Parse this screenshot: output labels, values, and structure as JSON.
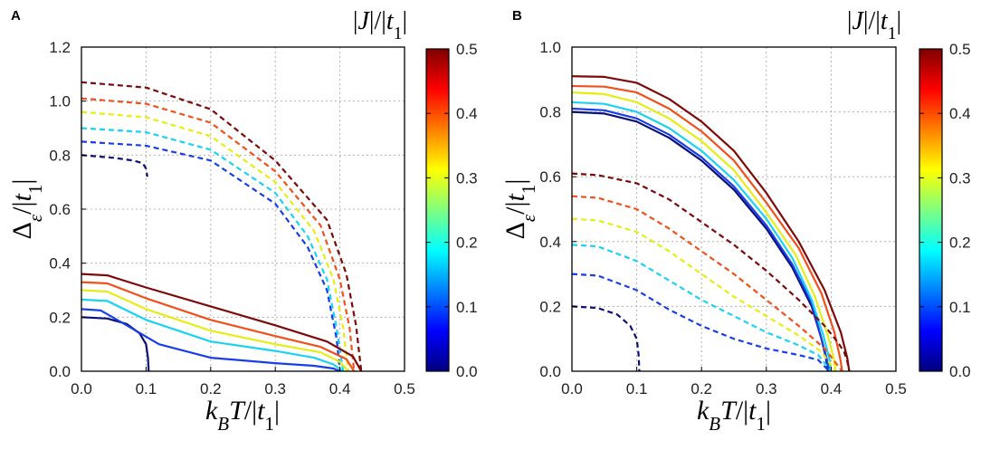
{
  "chart_data": [
    {
      "type": "line",
      "panel": "A",
      "xlabel": "k_B T / |t_1|",
      "ylabel": "Δ_ε / |t_1|",
      "xlim": [
        0.0,
        0.5
      ],
      "ylim": [
        0.0,
        1.2
      ],
      "xticks": [
        "0.0",
        "0.1",
        "0.2",
        "0.3",
        "0.4",
        "0.5"
      ],
      "yticks": [
        "0.0",
        "0.2",
        "0.4",
        "0.6",
        "0.8",
        "1.0",
        "1.2"
      ],
      "grid": true,
      "colorbar": {
        "title": "|J| / |t_1|",
        "min": 0.0,
        "max": 0.5,
        "ticks": [
          "0.0",
          "0.1",
          "0.2",
          "0.3",
          "0.4",
          "0.5"
        ],
        "colormap": "jet"
      },
      "series": [
        {
          "name": "|J|/|t1| = 0.0",
          "style": "dashed",
          "color": "#0b0f7a",
          "x": [
            0.0,
            0.05,
            0.08,
            0.095,
            0.1,
            0.102
          ],
          "y": [
            0.8,
            0.79,
            0.78,
            0.77,
            0.75,
            0.72
          ]
        },
        {
          "name": "|J|/|t1| = 0.0",
          "style": "solid",
          "color": "#0b0f7a",
          "x": [
            0.0,
            0.04,
            0.07,
            0.09,
            0.1,
            0.103,
            0.104
          ],
          "y": [
            0.2,
            0.195,
            0.175,
            0.14,
            0.1,
            0.05,
            0.0
          ]
        },
        {
          "name": "|J|/|t1| = 0.1 (dashed)",
          "style": "dashed",
          "color": "#1a3ee6",
          "x": [
            0.0,
            0.1,
            0.2,
            0.3,
            0.35,
            0.38,
            0.395,
            0.4
          ],
          "y": [
            0.85,
            0.835,
            0.78,
            0.62,
            0.46,
            0.3,
            0.12,
            0.0
          ]
        },
        {
          "name": "|J|/|t1| = 0.1 (solid)",
          "style": "solid",
          "color": "#1a3ee6",
          "x": [
            0.0,
            0.03,
            0.07,
            0.12,
            0.2,
            0.3,
            0.36,
            0.39,
            0.4
          ],
          "y": [
            0.23,
            0.225,
            0.17,
            0.1,
            0.05,
            0.03,
            0.02,
            0.01,
            0.0
          ]
        },
        {
          "name": "|J|/|t1| = 0.2 (dashed)",
          "style": "dashed",
          "color": "#19d3f0",
          "x": [
            0.0,
            0.1,
            0.2,
            0.3,
            0.35,
            0.38,
            0.395,
            0.405
          ],
          "y": [
            0.9,
            0.885,
            0.82,
            0.66,
            0.5,
            0.34,
            0.16,
            0.0
          ]
        },
        {
          "name": "|J|/|t1| = 0.2 (solid)",
          "style": "solid",
          "color": "#19d3f0",
          "x": [
            0.0,
            0.04,
            0.1,
            0.2,
            0.3,
            0.36,
            0.39,
            0.405
          ],
          "y": [
            0.265,
            0.26,
            0.19,
            0.11,
            0.075,
            0.05,
            0.025,
            0.0
          ]
        },
        {
          "name": "|J|/|t1| = 0.3 (dashed)",
          "style": "dashed",
          "color": "#e4ee14",
          "x": [
            0.0,
            0.1,
            0.2,
            0.3,
            0.36,
            0.39,
            0.405,
            0.413
          ],
          "y": [
            0.96,
            0.94,
            0.87,
            0.7,
            0.52,
            0.34,
            0.16,
            0.0
          ]
        },
        {
          "name": "|J|/|t1| = 0.3 (solid)",
          "style": "solid",
          "color": "#e4ee14",
          "x": [
            0.0,
            0.04,
            0.1,
            0.2,
            0.3,
            0.37,
            0.4,
            0.413
          ],
          "y": [
            0.3,
            0.295,
            0.23,
            0.15,
            0.1,
            0.07,
            0.035,
            0.0
          ]
        },
        {
          "name": "|J|/|t1| = 0.4 (dashed)",
          "style": "dashed",
          "color": "#f0501c",
          "x": [
            0.0,
            0.1,
            0.2,
            0.3,
            0.37,
            0.4,
            0.415,
            0.422
          ],
          "y": [
            1.01,
            0.99,
            0.92,
            0.74,
            0.54,
            0.34,
            0.16,
            0.0
          ]
        },
        {
          "name": "|J|/|t1| = 0.4 (solid)",
          "style": "solid",
          "color": "#f0501c",
          "x": [
            0.0,
            0.04,
            0.1,
            0.2,
            0.3,
            0.37,
            0.41,
            0.422
          ],
          "y": [
            0.33,
            0.325,
            0.27,
            0.19,
            0.13,
            0.09,
            0.045,
            0.0
          ]
        },
        {
          "name": "|J|/|t1| = 0.5 (dashed)",
          "style": "dashed",
          "color": "#7d0a0a",
          "x": [
            0.0,
            0.1,
            0.2,
            0.3,
            0.38,
            0.41,
            0.425,
            0.433
          ],
          "y": [
            1.07,
            1.05,
            0.97,
            0.78,
            0.56,
            0.36,
            0.17,
            0.0
          ]
        },
        {
          "name": "|J|/|t1| = 0.5 (solid)",
          "style": "solid",
          "color": "#7d0a0a",
          "x": [
            0.0,
            0.04,
            0.1,
            0.2,
            0.3,
            0.38,
            0.42,
            0.433
          ],
          "y": [
            0.36,
            0.355,
            0.31,
            0.24,
            0.17,
            0.11,
            0.055,
            0.0
          ]
        }
      ]
    },
    {
      "type": "line",
      "panel": "B",
      "xlabel": "k_B T / |t_1|",
      "ylabel": "Δ_ε / |t_1|",
      "xlim": [
        0.0,
        0.5
      ],
      "ylim": [
        0.0,
        1.0
      ],
      "xticks": [
        "0.0",
        "0.1",
        "0.2",
        "0.3",
        "0.4",
        "0.5"
      ],
      "yticks": [
        "0.0",
        "0.2",
        "0.4",
        "0.6",
        "0.8",
        "1.0"
      ],
      "grid": true,
      "colorbar": {
        "title": "|J| / |t_1|",
        "min": 0.0,
        "max": 0.5,
        "ticks": [
          "0.0",
          "0.1",
          "0.2",
          "0.3",
          "0.4",
          "0.5"
        ],
        "colormap": "jet"
      },
      "series": [
        {
          "name": "|J|/|t1| = 0.0 (solid)",
          "style": "solid",
          "color": "#0b0f7a",
          "x": [
            0.0,
            0.05,
            0.1,
            0.15,
            0.2,
            0.25,
            0.3,
            0.34,
            0.37,
            0.385,
            0.392,
            0.395
          ],
          "y": [
            0.8,
            0.795,
            0.77,
            0.72,
            0.65,
            0.56,
            0.44,
            0.32,
            0.2,
            0.1,
            0.04,
            0.0
          ]
        },
        {
          "name": "|J|/|t1| = 0.0 (dashed)",
          "style": "dashed",
          "color": "#0b0f7a",
          "x": [
            0.0,
            0.04,
            0.07,
            0.09,
            0.1,
            0.103,
            0.104
          ],
          "y": [
            0.2,
            0.195,
            0.175,
            0.14,
            0.1,
            0.05,
            0.0
          ]
        },
        {
          "name": "|J|/|t1| = 0.1 (solid)",
          "style": "solid",
          "color": "#1a3ee6",
          "x": [
            0.0,
            0.05,
            0.1,
            0.15,
            0.2,
            0.25,
            0.3,
            0.34,
            0.37,
            0.385,
            0.393,
            0.397
          ],
          "y": [
            0.81,
            0.805,
            0.78,
            0.73,
            0.66,
            0.57,
            0.45,
            0.33,
            0.21,
            0.1,
            0.04,
            0.0
          ]
        },
        {
          "name": "|J|/|t1| = 0.1 (dashed)",
          "style": "dashed",
          "color": "#1a3ee6",
          "x": [
            0.0,
            0.04,
            0.1,
            0.15,
            0.2,
            0.25,
            0.3,
            0.35,
            0.38,
            0.397
          ],
          "y": [
            0.3,
            0.295,
            0.25,
            0.19,
            0.14,
            0.1,
            0.07,
            0.05,
            0.035,
            0.0
          ]
        },
        {
          "name": "|J|/|t1| = 0.2 (solid)",
          "style": "solid",
          "color": "#19d3f0",
          "x": [
            0.0,
            0.05,
            0.1,
            0.15,
            0.2,
            0.25,
            0.3,
            0.34,
            0.37,
            0.388,
            0.397,
            0.4
          ],
          "y": [
            0.83,
            0.825,
            0.8,
            0.75,
            0.68,
            0.59,
            0.47,
            0.35,
            0.22,
            0.11,
            0.04,
            0.0
          ]
        },
        {
          "name": "|J|/|t1| = 0.2 (dashed)",
          "style": "dashed",
          "color": "#19d3f0",
          "x": [
            0.0,
            0.04,
            0.1,
            0.15,
            0.2,
            0.25,
            0.3,
            0.35,
            0.38,
            0.4
          ],
          "y": [
            0.39,
            0.385,
            0.34,
            0.28,
            0.22,
            0.17,
            0.12,
            0.08,
            0.05,
            0.0
          ]
        },
        {
          "name": "|J|/|t1| = 0.3 (solid)",
          "style": "solid",
          "color": "#e4ee14",
          "x": [
            0.0,
            0.05,
            0.1,
            0.15,
            0.2,
            0.25,
            0.3,
            0.345,
            0.375,
            0.395,
            0.404,
            0.407
          ],
          "y": [
            0.86,
            0.855,
            0.83,
            0.78,
            0.71,
            0.62,
            0.49,
            0.36,
            0.23,
            0.11,
            0.04,
            0.0
          ]
        },
        {
          "name": "|J|/|t1| = 0.3 (dashed)",
          "style": "dashed",
          "color": "#e4ee14",
          "x": [
            0.0,
            0.04,
            0.1,
            0.15,
            0.2,
            0.25,
            0.3,
            0.35,
            0.385,
            0.407
          ],
          "y": [
            0.47,
            0.465,
            0.43,
            0.37,
            0.3,
            0.23,
            0.17,
            0.11,
            0.06,
            0.0
          ]
        },
        {
          "name": "|J|/|t1| = 0.4 (solid)",
          "style": "solid",
          "color": "#f0501c",
          "x": [
            0.0,
            0.05,
            0.1,
            0.15,
            0.2,
            0.25,
            0.3,
            0.35,
            0.385,
            0.405,
            0.414,
            0.417
          ],
          "y": [
            0.88,
            0.878,
            0.86,
            0.81,
            0.74,
            0.65,
            0.52,
            0.38,
            0.24,
            0.12,
            0.04,
            0.0
          ]
        },
        {
          "name": "|J|/|t1| = 0.4 (dashed)",
          "style": "dashed",
          "color": "#f0501c",
          "x": [
            0.0,
            0.04,
            0.1,
            0.15,
            0.2,
            0.25,
            0.3,
            0.35,
            0.39,
            0.417
          ],
          "y": [
            0.54,
            0.535,
            0.5,
            0.44,
            0.37,
            0.3,
            0.22,
            0.14,
            0.07,
            0.0
          ]
        },
        {
          "name": "|J|/|t1| = 0.5 (solid)",
          "style": "solid",
          "color": "#7d0a0a",
          "x": [
            0.0,
            0.05,
            0.1,
            0.15,
            0.2,
            0.25,
            0.3,
            0.35,
            0.39,
            0.415,
            0.425,
            0.428
          ],
          "y": [
            0.91,
            0.908,
            0.89,
            0.84,
            0.77,
            0.68,
            0.55,
            0.4,
            0.25,
            0.12,
            0.04,
            0.0
          ]
        },
        {
          "name": "|J|/|t1| = 0.5 (dashed)",
          "style": "dashed",
          "color": "#7d0a0a",
          "x": [
            0.0,
            0.04,
            0.1,
            0.15,
            0.2,
            0.25,
            0.3,
            0.35,
            0.39,
            0.41,
            0.42,
            0.425,
            0.428
          ],
          "y": [
            0.61,
            0.605,
            0.58,
            0.53,
            0.46,
            0.39,
            0.31,
            0.22,
            0.14,
            0.09,
            0.06,
            0.03,
            0.0
          ]
        }
      ]
    }
  ]
}
